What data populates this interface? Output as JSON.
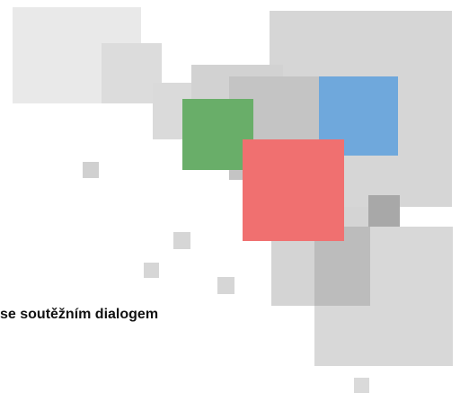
{
  "subtitle": "se soutěžním dialogem"
}
